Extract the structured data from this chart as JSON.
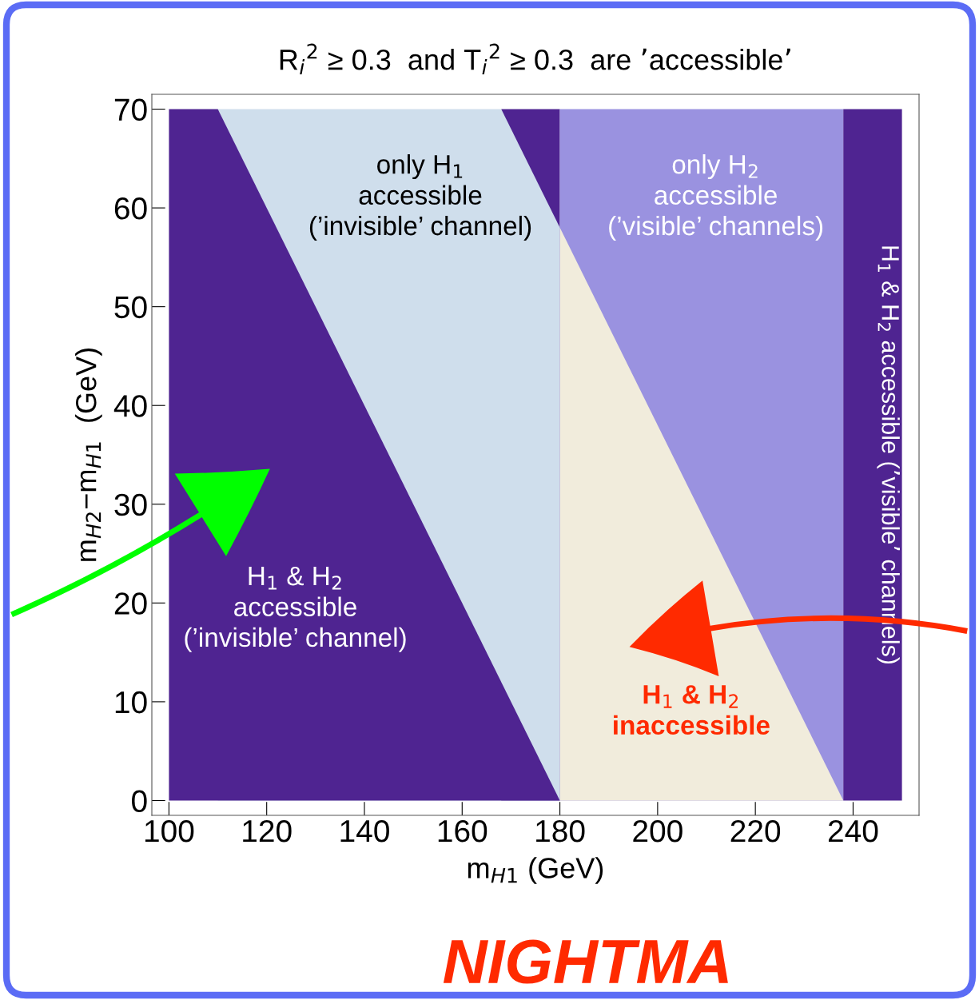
{
  "chart_data": {
    "type": "area",
    "title": "R$_{i}$$^{2}$ ≥ 0.3  and T$_{i}$$^{2}$ ≥ 0.3  are ’accessible’",
    "xlabel": "m$_{H1}$ (GeV)",
    "ylabel": "m$_{H2}$−m$_{H1}$  (GeV)",
    "series": [
      {
        "color": "#4f2491",
        "x": [
          168,
          180
        ],
        "values": [
          70,
          70
        ]
      },
      {
        "color": "#cfdeec",
        "x": [
          110,
          168,
          180
        ],
        "values": [
          70,
          70,
          58
        ]
      },
      {
        "color": "#4f2491",
        "x": [
          100,
          110,
          180
        ],
        "values": [
          70,
          70,
          0
        ]
      },
      {
        "color": "#9a92e0",
        "x": [
          180,
          238
        ],
        "values": [
          70,
          70
        ]
      },
      {
        "color": "#f1ecdc",
        "x": [
          180,
          238
        ],
        "values": [
          58,
          0
        ]
      },
      {
        "color": "#4f2491",
        "x": [
          238,
          250
        ],
        "values": [
          70,
          70
        ]
      }
    ],
    "xlim": [
      96.5,
      253.5
    ],
    "ylim": [
      -1.5,
      71.5
    ],
    "xticks": [
      100,
      120,
      140,
      160,
      180,
      200,
      220,
      240
    ],
    "yticks": [
      0,
      10,
      20,
      30,
      40,
      50,
      60,
      70
    ],
    "annotations": [
      "only H$_{1}$\naccessible\n(’invisible’ channel)",
      "only H$_{2}$\naccessible\n(’visible’ channels)",
      "H$_{1}$ & H$_{2}$\naccessible\n(’invisible’ channel)",
      "H$_{1}$ & H$_{2}$\ninaccessible",
      "H$_{1}$ & H$_{2}$ accessible (’visible’ channels)",
      "NIGHTMA"
    ]
  }
}
